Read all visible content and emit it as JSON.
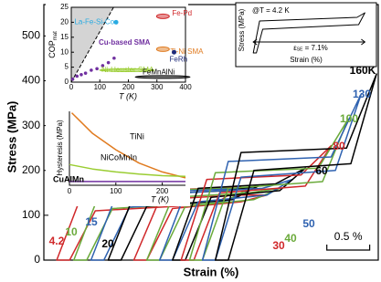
{
  "chart_data": [
    {
      "type": "line",
      "ylabel": "Stress (MPa)",
      "xlabel": "Strain (%)",
      "xlim": [
        0,
        3.9
      ],
      "ylim": [
        0,
        570
      ],
      "yticks": [
        0,
        100,
        200,
        300,
        400,
        500
      ],
      "scalebar": {
        "label": "0.5 %",
        "length": 0.5
      },
      "series": [
        {
          "name": "4.2",
          "color": "#d0282a",
          "x": [
            0.15,
            0.45,
            1.95,
            2.3,
            2.0,
            0.6,
            0.3
          ],
          "values": [
            0,
            150,
            160,
            165,
            125,
            110,
            0
          ]
        },
        {
          "name": "10",
          "color": "#6aaa3a",
          "x": [
            0.35,
            0.65,
            2.05,
            2.4,
            2.1,
            0.8,
            0.5
          ],
          "values": [
            0,
            150,
            160,
            160,
            130,
            115,
            0
          ]
        },
        {
          "name": "15",
          "color": "#2f62b0",
          "x": [
            0.55,
            0.85,
            2.1,
            2.45,
            2.15,
            1.0,
            0.7
          ],
          "values": [
            0,
            148,
            158,
            160,
            133,
            118,
            0
          ]
        },
        {
          "name": "20",
          "color": "#000000",
          "x": [
            0.75,
            1.05,
            2.15,
            2.5,
            2.2,
            1.2,
            0.9
          ],
          "values": [
            0,
            145,
            155,
            165,
            135,
            120,
            0
          ]
        },
        {
          "name": "30",
          "color": "#d0282a",
          "x": [
            1.05,
            1.35,
            2.25,
            2.6,
            2.3,
            1.5,
            1.2
          ],
          "values": [
            0,
            135,
            145,
            145,
            130,
            115,
            0
          ]
        },
        {
          "name": "40",
          "color": "#6aaa3a",
          "x": [
            1.2,
            1.5,
            2.4,
            2.75,
            2.45,
            1.65,
            1.35
          ],
          "values": [
            0,
            140,
            150,
            160,
            135,
            120,
            0
          ]
        },
        {
          "name": "50",
          "color": "#2f62b0",
          "x": [
            1.35,
            1.65,
            2.55,
            2.9,
            2.6,
            1.8,
            1.5
          ],
          "values": [
            0,
            150,
            160,
            180,
            145,
            130,
            0
          ]
        },
        {
          "name": "60",
          "color": "#000000",
          "x": [
            1.5,
            1.8,
            2.7,
            3.05,
            2.75,
            1.95,
            1.65
          ],
          "values": [
            0,
            160,
            170,
            205,
            155,
            140,
            0
          ]
        },
        {
          "name": "80",
          "color": "#d0282a",
          "x": [
            1.6,
            1.9,
            3.0,
            3.35,
            3.05,
            2.05,
            1.75
          ],
          "values": [
            0,
            180,
            190,
            255,
            165,
            150,
            0
          ]
        },
        {
          "name": "100",
          "color": "#6aaa3a",
          "x": [
            1.7,
            2.0,
            3.2,
            3.55,
            3.25,
            2.15,
            1.85
          ],
          "values": [
            0,
            195,
            205,
            315,
            175,
            160,
            0
          ]
        },
        {
          "name": "130",
          "color": "#2f62b0",
          "x": [
            1.85,
            2.15,
            3.35,
            3.7,
            3.4,
            2.3,
            2.0
          ],
          "values": [
            0,
            220,
            230,
            370,
            200,
            185,
            0
          ]
        },
        {
          "name": "160K",
          "color": "#000000",
          "x": [
            2.0,
            2.3,
            3.53,
            3.88,
            3.58,
            2.45,
            2.15
          ],
          "values": [
            0,
            240,
            250,
            415,
            215,
            200,
            0
          ]
        }
      ]
    },
    {
      "type": "line",
      "ylabel": "COP",
      "ylabel_sub": "mat",
      "xlabel": "T (K)",
      "xlim": [
        0,
        400
      ],
      "ylim": [
        0,
        25
      ],
      "xticks": [
        0,
        100,
        200,
        300,
        400
      ],
      "yticks": [
        0,
        5,
        10,
        15,
        20,
        25
      ],
      "limit_line": {
        "x": [
          0,
          148
        ],
        "values": [
          0,
          25
        ]
      },
      "series": [
        {
          "name": "Cu-based SMA",
          "color": "#7030a0",
          "x": [
            5,
            20,
            35,
            50,
            70,
            90,
            110,
            130,
            150
          ],
          "values": [
            1,
            2,
            2.5,
            3,
            4,
            4.5,
            5.5,
            6.5,
            8
          ]
        }
      ],
      "points": [
        {
          "label": "La-Fe-Si-Co",
          "color": "#29abe2",
          "x": 157,
          "y": 20
        },
        {
          "label": "FeRh",
          "color": "#1f2a7a",
          "x": 360,
          "y": 10
        }
      ],
      "regions": [
        {
          "label": "Fe-Pd",
          "color": "#d0282a",
          "x": 321,
          "y": 22
        },
        {
          "label": "Ti-Ni SMA",
          "color": "#e07b20",
          "x": 321,
          "y": 11
        },
        {
          "label": "Ni-Heusler SMA",
          "color": "#9acd32",
          "x": 195,
          "y": 4
        },
        {
          "label": "FeMnAlNi",
          "color": "#000000",
          "x": 320,
          "y": 1.7
        }
      ]
    },
    {
      "type": "line",
      "ylabel": "Hysteresis (MPa)",
      "xlabel": "T (K)",
      "xlim": [
        0,
        250
      ],
      "ylim": [
        0,
        100
      ],
      "xticks": [
        0,
        100,
        200
      ],
      "series": [
        {
          "name": "TiNi",
          "color": "#e07b20",
          "x": [
            5,
            50,
            100,
            150,
            200,
            250
          ],
          "values": [
            98,
            70,
            48,
            30,
            18,
            10
          ]
        },
        {
          "name": "NiCoMnIn",
          "color": "#9acd32",
          "x": [
            0,
            50,
            100,
            150,
            200,
            250
          ],
          "values": [
            28,
            22,
            18,
            15,
            13,
            12
          ]
        },
        {
          "name": "CuAlMn",
          "color": "#7030a0",
          "x": [
            0,
            250
          ],
          "values": [
            5,
            5
          ]
        }
      ]
    },
    {
      "type": "line",
      "ylabel": "Stress (MPa)",
      "xlabel": "Strain (%)",
      "annotation": "@T = 4.2 K",
      "xlim": [
        -0.3,
        7.6
      ],
      "ylim": [
        0,
        100
      ],
      "strain_label": {
        "symbol": "ε",
        "sub": "SE",
        "text": " = 7.1%",
        "value": 7.1
      },
      "series": [
        {
          "name": "4.2 K",
          "color": "#000000",
          "x": [
            0,
            0.4,
            6.6,
            7.1,
            6.7,
            0.6,
            0.2
          ],
          "values": [
            0,
            70,
            78,
            88,
            62,
            52,
            0
          ]
        }
      ]
    }
  ]
}
